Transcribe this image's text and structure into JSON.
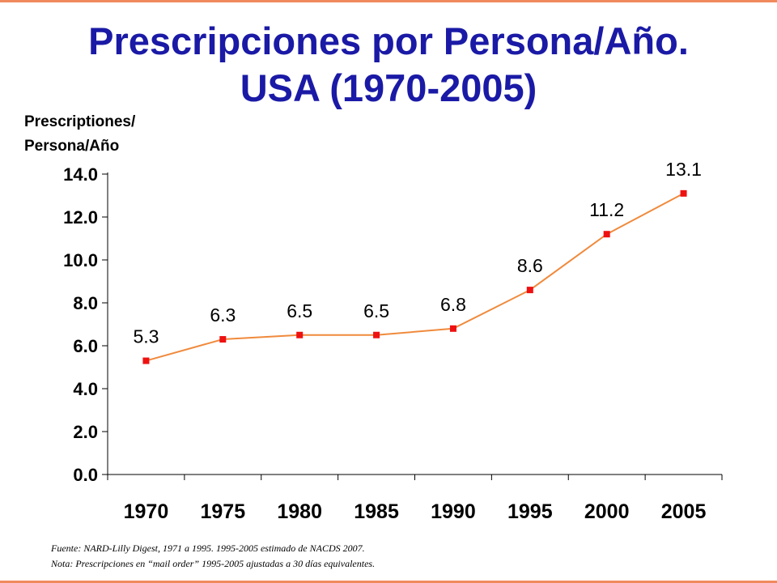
{
  "title_lines": [
    "Prescripciones por Persona/Año.",
    "USA (1970-2005)"
  ],
  "ylabel_lines": [
    "Prescriptiones/",
    "Persona/Año"
  ],
  "footnote_lines": [
    "Fuente:  NARD-Lilly Digest, 1971 a 1995. 1995-2005 estimado de NACDS 2007.",
    "Nota: Prescripciones  en “mail order” 1995-2005 ajustadas a 30 días equivalentes."
  ],
  "colors": {
    "title": "#1a1aa6",
    "line": "#f08a3c",
    "marker": "#ee1111",
    "border": "#f08a5d"
  },
  "chart_data": {
    "type": "line",
    "categories": [
      "1970",
      "1975",
      "1980",
      "1985",
      "1990",
      "1995",
      "2000",
      "2005"
    ],
    "values": [
      5.3,
      6.3,
      6.5,
      6.5,
      6.8,
      8.6,
      11.2,
      13.1
    ],
    "data_labels": [
      "5.3",
      "6.3",
      "6.5",
      "6.5",
      "6.8",
      "8.6",
      "11.2",
      "13.1"
    ],
    "ylim": [
      0,
      14
    ],
    "yticks": [
      "0.0",
      "2.0",
      "4.0",
      "6.0",
      "8.0",
      "10.0",
      "12.0",
      "14.0"
    ],
    "grid": false,
    "legend": "none",
    "marker": "square"
  }
}
